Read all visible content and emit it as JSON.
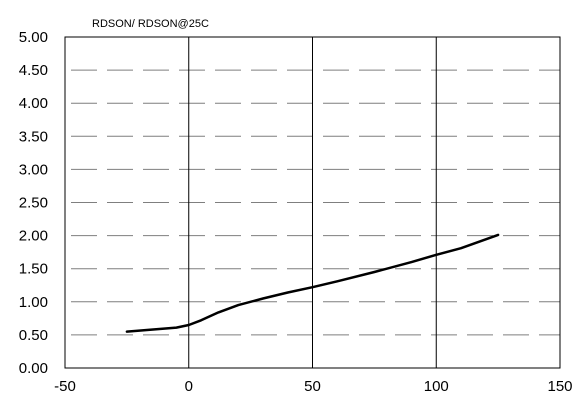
{
  "chart_data": {
    "type": "line",
    "title": "RDSON/ RDSON@25C",
    "xlabel": "",
    "ylabel": "",
    "xlim": [
      -50,
      150
    ],
    "ylim": [
      0,
      5
    ],
    "x_ticks": [
      -50,
      0,
      50,
      100,
      150
    ],
    "x_tick_labels": [
      "-50",
      "0",
      "50",
      "100",
      "150"
    ],
    "y_ticks": [
      0,
      0.5,
      1,
      1.5,
      2,
      2.5,
      3,
      3.5,
      4,
      4.5,
      5
    ],
    "y_tick_labels": [
      "0.00",
      "0.50",
      "1.00",
      "1.50",
      "2.00",
      "2.50",
      "3.00",
      "3.50",
      "4.00",
      "4.50",
      "5.00"
    ],
    "grid": {
      "vertical": "solid",
      "horizontal": "dashed"
    },
    "series": [
      {
        "x": [
          -25,
          -15,
          -5,
          0,
          5,
          12,
          20,
          30,
          40,
          50,
          60,
          75,
          90,
          100,
          110,
          125
        ],
        "y": [
          0.55,
          0.58,
          0.61,
          0.65,
          0.72,
          0.84,
          0.95,
          1.05,
          1.14,
          1.22,
          1.31,
          1.45,
          1.6,
          1.71,
          1.81,
          2.01
        ],
        "color": "#000000"
      }
    ]
  }
}
